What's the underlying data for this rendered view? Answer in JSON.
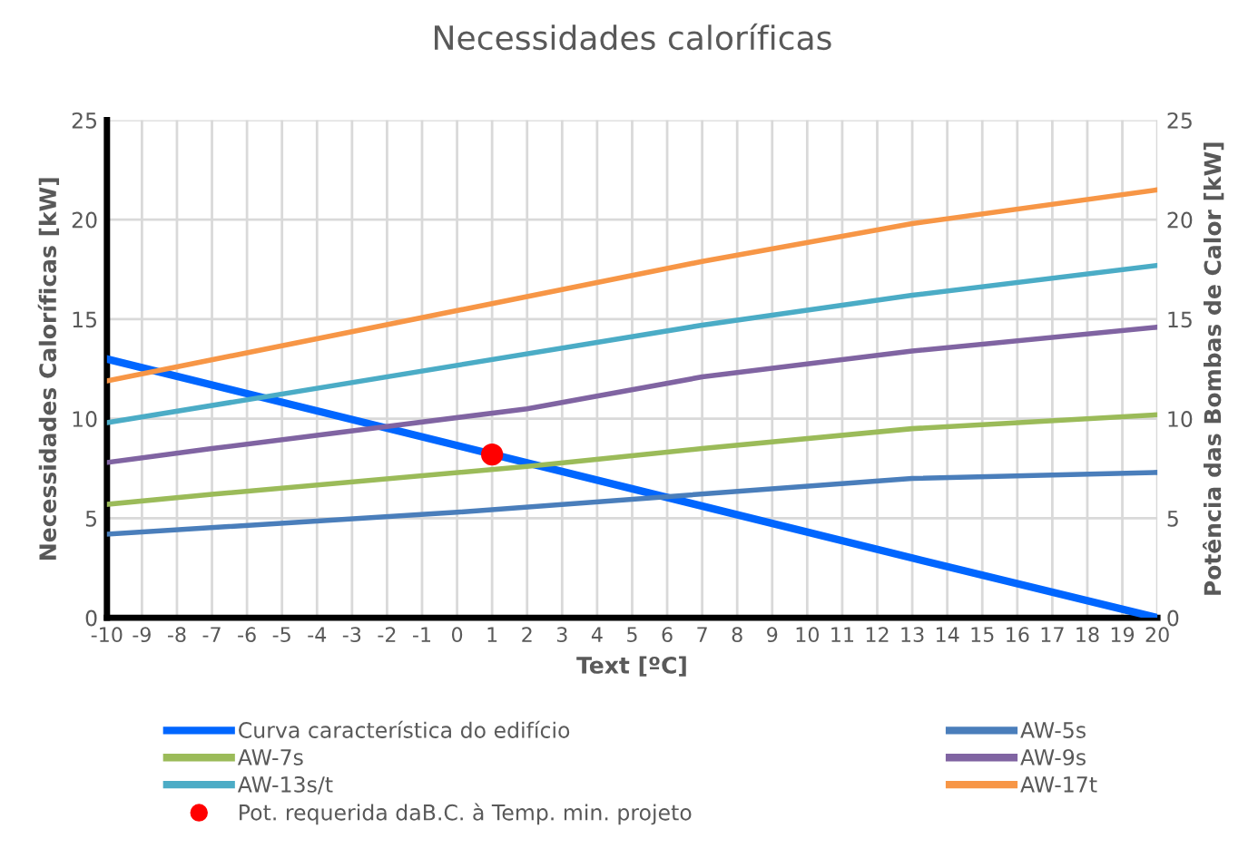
{
  "chart_data": {
    "type": "line",
    "title": "Necessidades caloríficas",
    "xlabel": "Text [ºC]",
    "ylabel": "Necessidades Caloríficas [kW]",
    "y2label": "Potência das Bombas de Calor [kW]",
    "xlim": [
      -10,
      20
    ],
    "xticks": [
      -10,
      -9,
      -8,
      -7,
      -6,
      -5,
      -4,
      -3,
      -2,
      -1,
      0,
      1,
      2,
      3,
      4,
      5,
      6,
      7,
      8,
      9,
      10,
      11,
      12,
      13,
      14,
      15,
      16,
      17,
      18,
      19,
      20
    ],
    "ylim": [
      0,
      25
    ],
    "yticks": [
      0,
      5,
      10,
      15,
      20,
      25
    ],
    "y2lim": [
      0,
      25
    ],
    "y2ticks": [
      0,
      5,
      10,
      15,
      20,
      25
    ],
    "grid": true,
    "legend": "bottom",
    "marker": "none",
    "line_style": "solid",
    "series": [
      {
        "name": "Curva característica do edifício",
        "color": "#0066ff",
        "x": [
          -10,
          13,
          20
        ],
        "values": [
          13.0,
          3.0,
          0.0
        ]
      },
      {
        "name": "AW-5s",
        "color": "#4a7ebb",
        "x": [
          -10,
          0,
          13,
          20
        ],
        "values": [
          4.2,
          5.3,
          7.0,
          7.3
        ]
      },
      {
        "name": "AW-7s",
        "color": "#9bbb59",
        "x": [
          -10,
          -7,
          2,
          7,
          13,
          20
        ],
        "values": [
          5.7,
          6.2,
          7.6,
          8.5,
          9.5,
          10.2
        ]
      },
      {
        "name": "AW-9s",
        "color": "#8064a2",
        "x": [
          -10,
          -7,
          2,
          7,
          13,
          20
        ],
        "values": [
          7.8,
          8.5,
          10.5,
          12.1,
          13.4,
          14.6
        ]
      },
      {
        "name": "AW-13s/t",
        "color": "#4bacc6",
        "x": [
          -10,
          7,
          13,
          20
        ],
        "values": [
          9.8,
          14.7,
          16.2,
          17.7
        ]
      },
      {
        "name": "AW-17t",
        "color": "#f79646",
        "x": [
          -10,
          7,
          13,
          20
        ],
        "values": [
          11.9,
          17.9,
          19.8,
          21.5
        ]
      },
      {
        "name": "Pot. requerida daB.C. à Temp. min. projeto",
        "type": "scatter",
        "marker": "circle",
        "color": "#ff0000",
        "x": [
          1
        ],
        "values": [
          8.2
        ]
      }
    ]
  }
}
